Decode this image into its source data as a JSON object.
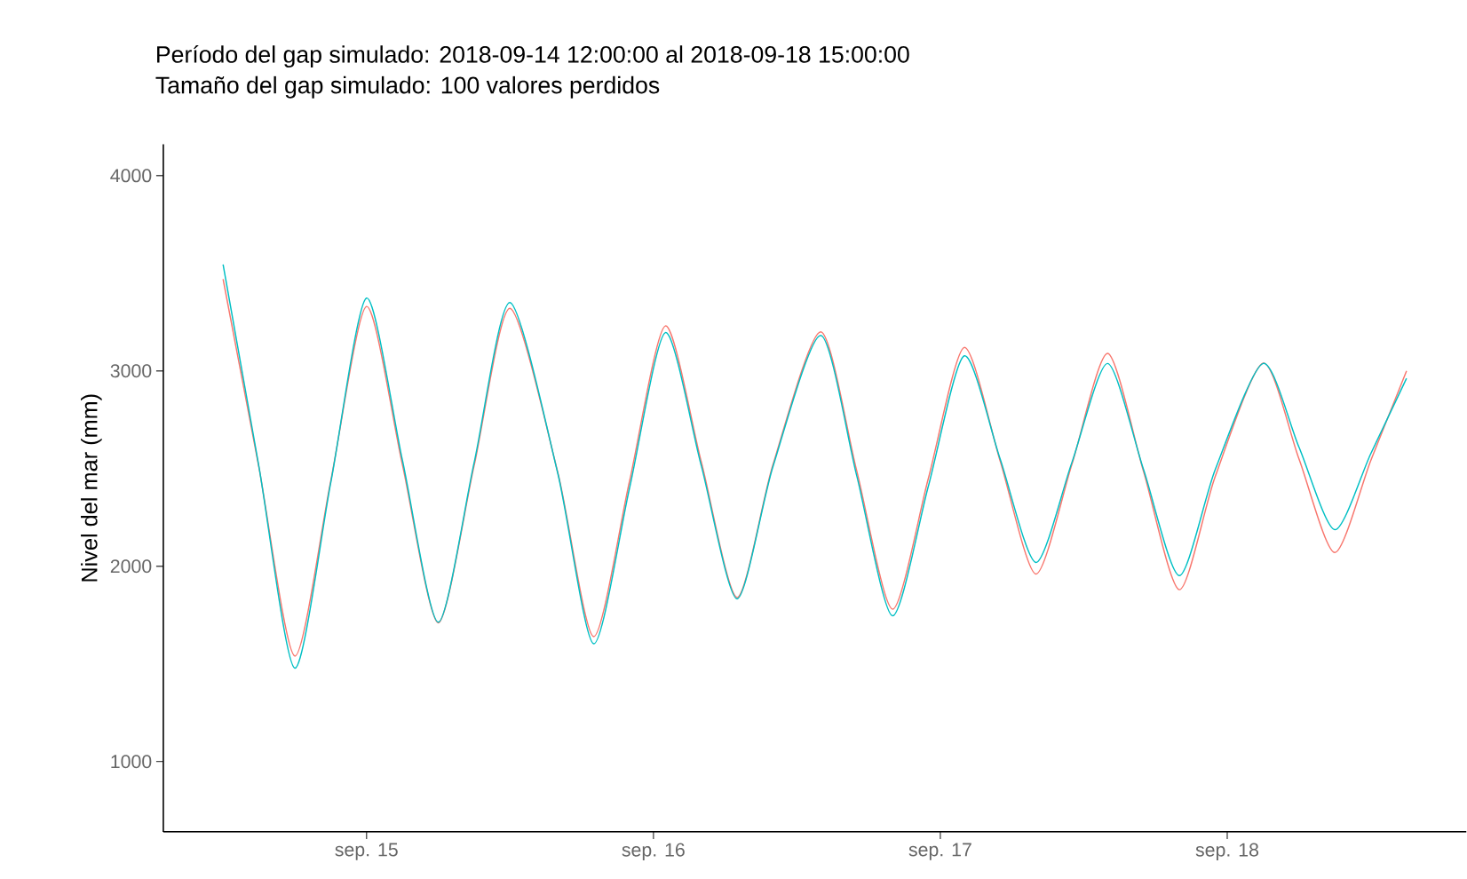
{
  "chart_data": {
    "type": "line",
    "title": "Período del gap simulado: 2018-09-14 12:00:00 al 2018-09-18 15:00:00",
    "subtitle": "Tamaño del gap simulado: 100 valores perdidos",
    "ylabel": "Nivel del mar (mm)",
    "x": [
      "2018-09-14T12:00",
      "2018-09-14T15:00",
      "2018-09-14T18:00",
      "2018-09-14T21:00",
      "2018-09-15T00:00",
      "2018-09-15T03:00",
      "2018-09-15T06:00",
      "2018-09-15T09:00",
      "2018-09-15T12:00",
      "2018-09-15T16:00",
      "2018-09-15T19:00",
      "2018-09-15T22:00",
      "2018-09-16T01:00",
      "2018-09-16T04:00",
      "2018-09-16T07:00",
      "2018-09-16T10:00",
      "2018-09-16T14:00",
      "2018-09-16T17:00",
      "2018-09-16T20:00",
      "2018-09-16T23:00",
      "2018-09-17T02:00",
      "2018-09-17T05:00",
      "2018-09-17T08:00",
      "2018-09-17T11:00",
      "2018-09-17T14:00",
      "2018-09-17T17:00",
      "2018-09-17T20:00",
      "2018-09-17T23:00",
      "2018-09-18T03:00",
      "2018-09-18T06:00",
      "2018-09-18T09:00",
      "2018-09-18T12:00",
      "2018-09-18T15:00"
    ],
    "series": [
      {
        "color": "#f8766d",
        "values": [
          3470,
          2505,
          1540,
          2435,
          3330,
          2520,
          1710,
          2515,
          3320,
          2480,
          1640,
          2435,
          3230,
          2535,
          1840,
          2520,
          3200,
          2490,
          1780,
          2450,
          3120,
          2540,
          1960,
          2520,
          3090,
          2485,
          1880,
          2460,
          3040,
          2550,
          2070,
          2540,
          3000
        ]
      },
      {
        "color": "#00bfc4",
        "values": [
          3545,
          2510,
          1478,
          2425,
          3373,
          2543,
          1713,
          2530,
          3350,
          2475,
          1603,
          2400,
          3196,
          2515,
          1833,
          2510,
          3182,
          2465,
          1746,
          2410,
          3077,
          2550,
          2019,
          2530,
          3038,
          2495,
          1952,
          2495,
          3038,
          2610,
          2187,
          2575,
          2962
        ]
      }
    ],
    "xlim": [
      "2018-09-14T07:00",
      "2018-09-18T20:00"
    ],
    "xticks": [
      {
        "value": "2018-09-15",
        "label": "sep. 15"
      },
      {
        "value": "2018-09-16",
        "label": "sep. 16"
      },
      {
        "value": "2018-09-17",
        "label": "sep. 17"
      },
      {
        "value": "2018-09-18",
        "label": "sep. 18"
      }
    ],
    "ylim": [
      640,
      4160
    ],
    "yticks": [
      1000,
      2000,
      3000,
      4000
    ],
    "grid": false,
    "marker": "none",
    "line_style": "solid"
  }
}
